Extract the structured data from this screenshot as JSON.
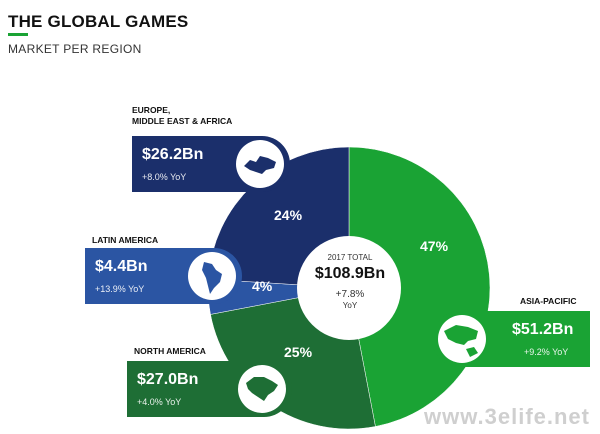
{
  "header": {
    "title": "THE GLOBAL GAMES",
    "subtitle": "MARKET PER REGION"
  },
  "center": {
    "total_label": "2017 TOTAL",
    "total_value": "$108.9Bn",
    "yoy_value": "+7.8%",
    "yoy_label": "YoY"
  },
  "watermark": "www.3elife.net",
  "colors": {
    "asia_pacific": "#1aa334",
    "north_america": "#1e6e35",
    "latin_america": "#2b55a3",
    "europe_mea": "#1b2f6b"
  },
  "cards": {
    "europe": {
      "label_line1": "EUROPE,",
      "label_line2": "MIDDLE EAST & AFRICA",
      "value": "$26.2Bn",
      "yoy": "+8.0% YoY",
      "icon": "europe-map-icon"
    },
    "latin": {
      "label": "LATIN AMERICA",
      "value": "$4.4Bn",
      "yoy": "+13.9% YoY",
      "icon": "latin-america-map-icon"
    },
    "north": {
      "label": "NORTH AMERICA",
      "value": "$27.0Bn",
      "yoy": "+4.0% YoY",
      "icon": "north-america-map-icon"
    },
    "asia": {
      "label": "ASIA-PACIFIC",
      "value": "$51.2Bn",
      "yoy": "+9.2% YoY",
      "icon": "asia-pacific-map-icon"
    }
  },
  "chart_data": {
    "type": "pie",
    "title": "THE GLOBAL GAMES",
    "subtitle": "MARKET PER REGION",
    "categories": [
      "Asia-Pacific",
      "North America",
      "Latin America",
      "Europe, Middle East & Africa"
    ],
    "values": [
      47,
      25,
      4,
      24
    ],
    "labels": [
      "47%",
      "25%",
      "4%",
      "24%"
    ],
    "amounts": [
      "$51.2Bn",
      "$27.0Bn",
      "$4.4Bn",
      "$26.2Bn"
    ],
    "yoy": [
      "+9.2%",
      "+4.0%",
      "+13.9%",
      "+8.0%"
    ]
  }
}
